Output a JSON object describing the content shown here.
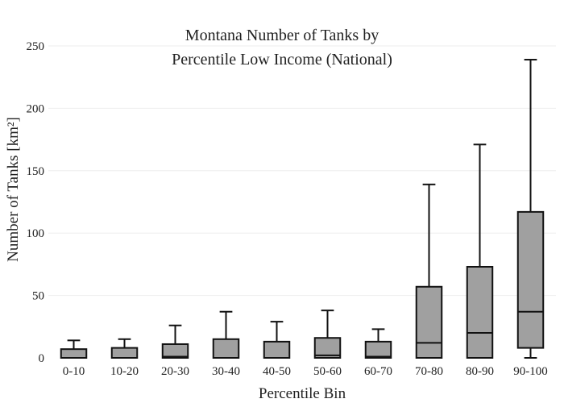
{
  "chart_data": {
    "type": "box",
    "title": [
      "Montana Number of Tanks by",
      "Percentile Low Income (National)"
    ],
    "xlabel": "Percentile Bin",
    "ylabel": "Number of Tanks  [km²]",
    "ylim": [
      0,
      250
    ],
    "yticks": [
      0,
      50,
      100,
      150,
      200,
      250
    ],
    "grid": true,
    "categories": [
      "0-10",
      "10-20",
      "20-30",
      "30-40",
      "40-50",
      "50-60",
      "60-70",
      "70-80",
      "80-90",
      "90-100"
    ],
    "boxes": [
      {
        "min": 0,
        "q1": 0,
        "median": 0,
        "q3": 7,
        "max": 14
      },
      {
        "min": 0,
        "q1": 0,
        "median": 0,
        "q3": 8,
        "max": 15
      },
      {
        "min": 0,
        "q1": 0,
        "median": 1,
        "q3": 11,
        "max": 26
      },
      {
        "min": 0,
        "q1": 0,
        "median": 0,
        "q3": 15,
        "max": 37
      },
      {
        "min": 0,
        "q1": 0,
        "median": 0,
        "q3": 13,
        "max": 29
      },
      {
        "min": 0,
        "q1": 0,
        "median": 2,
        "q3": 16,
        "max": 38
      },
      {
        "min": 0,
        "q1": 0,
        "median": 1,
        "q3": 13,
        "max": 23
      },
      {
        "min": 0,
        "q1": 0,
        "median": 12,
        "q3": 57,
        "max": 139
      },
      {
        "min": 0,
        "q1": 0,
        "median": 20,
        "q3": 73,
        "max": 171
      },
      {
        "min": 0,
        "q1": 8,
        "median": 37,
        "q3": 117,
        "max": 239
      }
    ],
    "box_color": "#a0a0a0",
    "line_color": "#111111",
    "grid_color": "#eeeeee"
  }
}
